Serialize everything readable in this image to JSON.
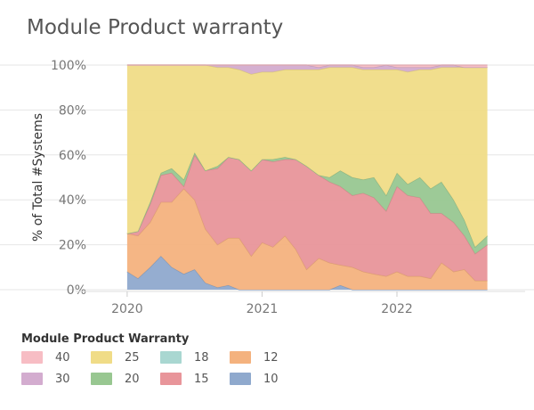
{
  "chart_data": {
    "type": "area",
    "title": "Module Product warranty",
    "xlabel": "",
    "ylabel": "% of Total #Systems",
    "ylim": [
      0,
      100
    ],
    "y_ticks": [
      "0%",
      "20%",
      "40%",
      "60%",
      "80%",
      "100%"
    ],
    "x_ticks": [
      "2020",
      "2021",
      "2022"
    ],
    "x_tick_values": [
      2020.0,
      2021.0,
      2022.0
    ],
    "xlim": [
      2019.75,
      2022.95
    ],
    "x": [
      2020.0,
      2020.08,
      2020.17,
      2020.25,
      2020.33,
      2020.42,
      2020.5,
      2020.58,
      2020.67,
      2020.75,
      2020.83,
      2020.92,
      2021.0,
      2021.08,
      2021.17,
      2021.25,
      2021.33,
      2021.42,
      2021.5,
      2021.58,
      2021.67,
      2021.75,
      2021.83,
      2021.92,
      2022.0,
      2022.08,
      2022.17,
      2022.25,
      2022.33,
      2022.42,
      2022.5,
      2022.58,
      2022.67
    ],
    "series": [
      {
        "name": "10",
        "color": "#8FA9CD",
        "values": [
          8,
          5,
          10,
          15,
          10,
          7,
          9,
          3,
          1,
          2,
          0,
          0,
          0,
          0,
          0,
          0,
          0,
          0,
          0,
          2,
          0,
          0,
          0,
          0,
          0,
          0,
          0,
          0,
          0,
          0,
          0,
          0,
          0
        ]
      },
      {
        "name": "12",
        "color": "#F4B27E",
        "values": [
          17,
          19,
          20,
          24,
          29,
          38,
          31,
          24,
          19,
          21,
          23,
          15,
          21,
          19,
          24,
          18,
          9,
          14,
          12,
          9,
          10,
          8,
          7,
          6,
          8,
          6,
          6,
          5,
          12,
          8,
          9,
          4,
          4
        ]
      },
      {
        "name": "15",
        "color": "#E8959A",
        "values": [
          0,
          2,
          8,
          12,
          13,
          1,
          20,
          26,
          34,
          36,
          35,
          38,
          37,
          38,
          34,
          40,
          46,
          37,
          36,
          35,
          32,
          35,
          34,
          29,
          38,
          36,
          35,
          29,
          22,
          22,
          15,
          12,
          16
        ]
      },
      {
        "name": "20",
        "color": "#98C791",
        "values": [
          0,
          0,
          1,
          1,
          2,
          3,
          1,
          0,
          1,
          0,
          0,
          0,
          0,
          1,
          1,
          0,
          0,
          0,
          2,
          7,
          8,
          6,
          9,
          7,
          6,
          5,
          9,
          11,
          14,
          10,
          7,
          3,
          4
        ]
      },
      {
        "name": "25",
        "color": "#F0DC87",
        "values": [
          75,
          74,
          61,
          48,
          46,
          51,
          39,
          47,
          44,
          40,
          40,
          43,
          39,
          39,
          39,
          40,
          43,
          47,
          49,
          46,
          49,
          49,
          48,
          56,
          46,
          50,
          48,
          53,
          51,
          59,
          68,
          80,
          75
        ]
      },
      {
        "name": "30",
        "color": "#D3ACCF",
        "values": [
          0,
          0,
          0,
          0,
          0,
          0,
          0,
          0,
          1,
          1,
          2,
          4,
          3,
          3,
          2,
          2,
          2,
          1,
          1,
          1,
          1,
          1,
          1,
          2,
          1,
          2,
          1,
          1,
          1,
          1,
          0,
          0,
          0
        ]
      },
      {
        "name": "40",
        "color": "#F7BDC4",
        "values": [
          0,
          0,
          0,
          0,
          0,
          0,
          0,
          0,
          0,
          0,
          0,
          0,
          0,
          0,
          0,
          0,
          0,
          1,
          0,
          0,
          0,
          1,
          1,
          0,
          1,
          1,
          1,
          1,
          0,
          0,
          1,
          1,
          1
        ]
      },
      {
        "name": "18",
        "color": "#A9D7D1",
        "values": [
          0,
          0,
          0,
          0,
          0,
          0,
          0,
          0,
          0,
          0,
          0,
          0,
          0,
          0,
          0,
          0,
          0,
          0,
          0,
          0,
          0,
          0,
          0,
          0,
          0,
          0,
          0,
          0,
          0,
          0,
          0,
          0,
          0
        ]
      }
    ],
    "legend": {
      "title": "Module Product Warranty",
      "placement": "bottom-left",
      "order": [
        "40",
        "25",
        "18",
        "12",
        "30",
        "20",
        "15",
        "10"
      ]
    },
    "grid": true
  }
}
